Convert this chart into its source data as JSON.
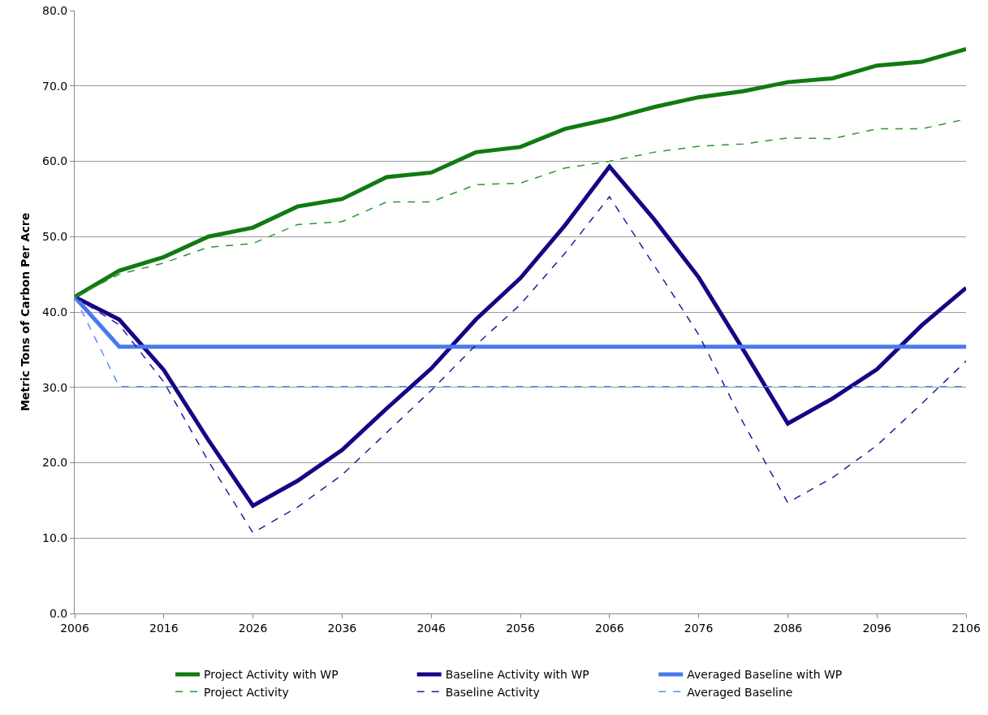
{
  "chart_data": {
    "type": "line",
    "ylabel": "Metric Tons of Carbon Per Acre",
    "x": [
      2006,
      2011,
      2016,
      2021,
      2026,
      2031,
      2036,
      2041,
      2046,
      2051,
      2056,
      2061,
      2066,
      2071,
      2076,
      2081,
      2086,
      2091,
      2096,
      2101,
      2106
    ],
    "xlim": [
      2006,
      2106
    ],
    "xticks": [
      2006,
      2016,
      2026,
      2036,
      2046,
      2056,
      2066,
      2076,
      2086,
      2096,
      2106
    ],
    "ylim": [
      0,
      80
    ],
    "yticks": [
      {
        "value": 0,
        "label": "0.0"
      },
      {
        "value": 10,
        "label": "10.0"
      },
      {
        "value": 20,
        "label": "20.0"
      },
      {
        "value": 30,
        "label": "30.0"
      },
      {
        "value": 40,
        "label": "40.0"
      },
      {
        "value": 50,
        "label": "50.0"
      },
      {
        "value": 60,
        "label": "60.0"
      },
      {
        "value": 70,
        "label": "70.0"
      },
      {
        "value": 80,
        "label": "80.0"
      }
    ],
    "grid": "y",
    "legend": "bottom",
    "marker": "none",
    "series": [
      {
        "name": "Project Activity with WP",
        "color": "#117a11",
        "line_style": "solid",
        "values": [
          42,
          45.5,
          47.3,
          50,
          51.2,
          54,
          55,
          57.9,
          58.5,
          61.2,
          61.9,
          64.3,
          65.6,
          67.2,
          68.5,
          69.3,
          70.5,
          71,
          72.7,
          73.2,
          74.9
        ]
      },
      {
        "name": "Baseline Activity with WP",
        "color": "#160585",
        "line_style": "solid",
        "values": [
          42,
          39,
          32.3,
          23,
          14.3,
          17.6,
          21.7,
          27.2,
          32.5,
          39,
          44.5,
          51.5,
          59.3,
          52.3,
          44.6,
          35,
          25.2,
          28.5,
          32.4,
          38.2,
          43.2
        ]
      },
      {
        "name": "Averaged Baseline with WP",
        "color": "#4a78f0",
        "line_style": "solid",
        "values": [
          42,
          35.4,
          35.4,
          35.4,
          35.4,
          35.4,
          35.4,
          35.4,
          35.4,
          35.4,
          35.4,
          35.4,
          35.4,
          35.4,
          35.4,
          35.4,
          35.4,
          35.4,
          35.4,
          35.4,
          35.4
        ]
      },
      {
        "name": "Project Activity",
        "color": "#2e962e",
        "line_style": "dashed",
        "values": [
          42,
          45,
          46.5,
          48.6,
          49.1,
          51.6,
          52,
          54.6,
          54.6,
          56.9,
          57.1,
          59.1,
          60,
          61.2,
          62,
          62.3,
          63.1,
          63,
          64.3,
          64.3,
          65.6
        ]
      },
      {
        "name": "Baseline Activity",
        "color": "#2a1a95",
        "line_style": "dashed",
        "values": [
          42,
          38.3,
          30.7,
          20.2,
          10.7,
          14.1,
          18.4,
          24,
          29.6,
          35.6,
          41,
          47.8,
          55.3,
          46.2,
          37,
          25.3,
          14.7,
          18,
          22.3,
          27.8,
          33.5
        ]
      },
      {
        "name": "Averaged Baseline",
        "color": "#5b8def",
        "line_style": "dashed",
        "values": [
          42,
          30.1,
          30.1,
          30.1,
          30.1,
          30.1,
          30.1,
          30.1,
          30.1,
          30.1,
          30.1,
          30.1,
          30.1,
          30.1,
          30.1,
          30.1,
          30.1,
          30.1,
          30.1,
          30.1,
          30.1
        ]
      }
    ]
  }
}
